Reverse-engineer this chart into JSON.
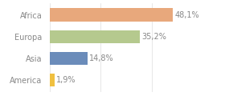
{
  "categories": [
    "Africa",
    "Europa",
    "Asia",
    "America"
  ],
  "values": [
    48.1,
    35.2,
    14.8,
    1.9
  ],
  "bar_colors": [
    "#e8a87c",
    "#b5c98e",
    "#6b8cba",
    "#f0c040"
  ],
  "labels": [
    "48,1%",
    "35,2%",
    "14,8%",
    "1,9%"
  ],
  "background_color": "#ffffff",
  "text_color": "#888888",
  "label_fontsize": 7.0,
  "tick_fontsize": 7.0,
  "bar_height": 0.6,
  "xlim": [
    0,
    58
  ],
  "figsize": [
    2.8,
    1.2
  ],
  "dpi": 100
}
